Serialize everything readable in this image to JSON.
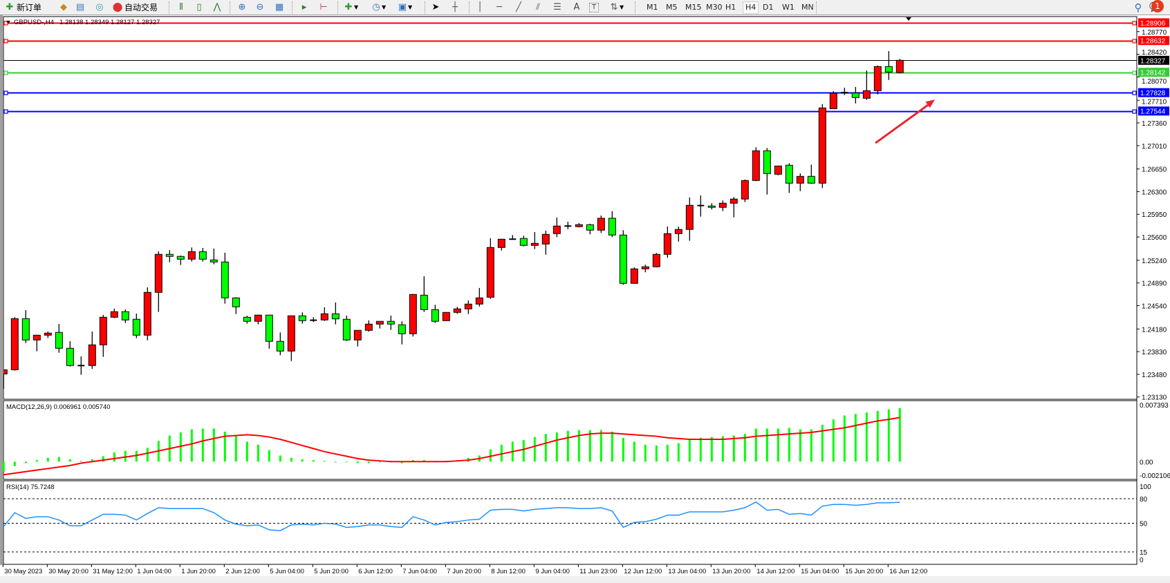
{
  "toolbar": {
    "new_order_label": "新订单",
    "auto_trade_label": "自动交易",
    "tools": [
      "market-watch-icon",
      "data-window-icon",
      "navigator-icon",
      "terminal-icon",
      "bar-chart-icon",
      "candlestick-icon",
      "line-chart-icon",
      "zoom-in-icon",
      "zoom-out-icon",
      "tile-windows-icon",
      "auto-scroll-icon",
      "chart-shift-icon",
      "indicators-icon",
      "periods-icon",
      "templates-icon",
      "cursor-icon",
      "crosshair-icon",
      "vertical-line-icon",
      "horizontal-line-icon",
      "trendline-icon",
      "equidistant-channel-icon",
      "fibonacci-icon",
      "text-icon",
      "text-label-icon",
      "arrows-icon"
    ],
    "text_tool_label": "A",
    "timeframes": [
      "M1",
      "M5",
      "M15",
      "M30",
      "H1",
      "H4",
      "D1",
      "W1",
      "MN"
    ],
    "active_timeframe": "H4",
    "notification_count": "1"
  },
  "chart_header": {
    "symbol": "GBPUSD-,H4",
    "ohlc": "1.28138 1.28349 1.28127 1.28327"
  },
  "colors": {
    "bull": "#ff0000",
    "bear": "#00ff00",
    "macd_hist": "#00ff00",
    "signal": "#ff0000",
    "rsi": "#1e90ff",
    "resistance": "#ff0000",
    "support": "#0000ff",
    "green_level": "#32cd32",
    "arrow": "#e8262b"
  },
  "chart_data": [
    {
      "type": "candlestick",
      "ohlc_order": "open,high,low,close",
      "candles": [
        [
          1.23486,
          1.2355,
          1.23258,
          1.2355
        ],
        [
          1.23551,
          1.24361,
          1.23537,
          1.2434
        ],
        [
          1.2434,
          1.24471,
          1.23963,
          1.2401
        ],
        [
          1.2401,
          1.2409,
          1.23835,
          1.24084
        ],
        [
          1.24084,
          1.24141,
          1.24042,
          1.24116
        ],
        [
          1.24127,
          1.24258,
          1.23814,
          1.23882
        ],
        [
          1.23882,
          1.23992,
          1.236,
          1.23615
        ],
        [
          1.23615,
          1.23757,
          1.23473,
          1.23615
        ],
        [
          1.23615,
          1.24141,
          1.23565,
          1.23935
        ],
        [
          1.23935,
          1.24397,
          1.2375,
          1.24361
        ],
        [
          1.24361,
          1.24493,
          1.24347,
          1.24447
        ],
        [
          1.24447,
          1.24482,
          1.24272,
          1.24319
        ],
        [
          1.2433,
          1.24418,
          1.24038,
          1.24084
        ],
        [
          1.24084,
          1.24823,
          1.24006,
          1.24745
        ],
        [
          1.24745,
          1.25378,
          1.24443,
          1.25332
        ],
        [
          1.25332,
          1.25396,
          1.2521,
          1.253
        ],
        [
          1.253,
          1.25314,
          1.25168,
          1.25257
        ],
        [
          1.25257,
          1.25438,
          1.25221,
          1.25374
        ],
        [
          1.25374,
          1.25431,
          1.25221,
          1.25257
        ],
        [
          1.25246,
          1.2542,
          1.25178,
          1.25214
        ],
        [
          1.25214,
          1.25356,
          1.24571,
          1.2466
        ],
        [
          1.2466,
          1.2467,
          1.24411,
          1.24522
        ],
        [
          1.24361,
          1.24383,
          1.24262,
          1.24298
        ],
        [
          1.24298,
          1.244,
          1.24251,
          1.24394
        ],
        [
          1.24394,
          1.244,
          1.23878,
          1.23989
        ],
        [
          1.23989,
          1.24127,
          1.23775,
          1.23839
        ],
        [
          1.23839,
          1.2439,
          1.23686,
          1.24383
        ],
        [
          1.24383,
          1.24436,
          1.24262,
          1.24308
        ],
        [
          1.24315,
          1.24361,
          1.24287,
          1.24315
        ],
        [
          1.24319,
          1.24514,
          1.24304,
          1.24415
        ],
        [
          1.24415,
          1.24589,
          1.24251,
          1.24336
        ],
        [
          1.2433,
          1.24386,
          1.23995,
          1.2401
        ],
        [
          1.2401,
          1.2416,
          1.2391,
          1.24159
        ],
        [
          1.24159,
          1.24312,
          1.24138,
          1.24255
        ],
        [
          1.24255,
          1.243,
          1.24187,
          1.24298
        ],
        [
          1.24298,
          1.24386,
          1.24166,
          1.24255
        ],
        [
          1.24245,
          1.24298,
          1.23942,
          1.24106
        ],
        [
          1.24106,
          1.2472,
          1.24063,
          1.24713
        ],
        [
          1.24702,
          1.24994,
          1.24443,
          1.24479
        ],
        [
          1.24479,
          1.24554,
          1.24272,
          1.24298
        ],
        [
          1.24308,
          1.2444,
          1.243,
          1.24436
        ],
        [
          1.24436,
          1.24521,
          1.24415,
          1.2449
        ],
        [
          1.2449,
          1.24621,
          1.24411,
          1.24564
        ],
        [
          1.24564,
          1.24813,
          1.24527,
          1.2466
        ],
        [
          1.2467,
          1.2558,
          1.24645,
          1.25438
        ],
        [
          1.25438,
          1.2557,
          1.25391,
          1.25566
        ],
        [
          1.25566,
          1.2563,
          1.2556,
          1.25566
        ],
        [
          1.25577,
          1.25619,
          1.25455,
          1.2547
        ],
        [
          1.2547,
          1.25676,
          1.25413,
          1.25502
        ],
        [
          1.25491,
          1.25698,
          1.25327,
          1.25641
        ],
        [
          1.25652,
          1.259,
          1.25598,
          1.25769
        ],
        [
          1.25769,
          1.25836,
          1.2572,
          1.25769
        ],
        [
          1.25759,
          1.25815,
          1.25748,
          1.2579
        ],
        [
          1.2579,
          1.25804,
          1.25641,
          1.25705
        ],
        [
          1.25705,
          1.25932,
          1.25662,
          1.25889
        ],
        [
          1.25889,
          1.25996,
          1.25598,
          1.2563
        ],
        [
          1.2563,
          1.25704,
          1.24863,
          1.24884
        ],
        [
          1.24884,
          1.2513,
          1.2488,
          1.25108
        ],
        [
          1.25108,
          1.25172,
          1.25055,
          1.2514
        ],
        [
          1.2514,
          1.25353,
          1.2513,
          1.25332
        ],
        [
          1.25332,
          1.25761,
          1.25279,
          1.25652
        ],
        [
          1.25652,
          1.25761,
          1.2553,
          1.25716
        ],
        [
          1.25716,
          1.26209,
          1.25541,
          1.26089
        ],
        [
          1.26085,
          1.26241,
          1.25914,
          1.26085
        ],
        [
          1.26078,
          1.26121,
          1.26025,
          1.26057
        ],
        [
          1.26057,
          1.26163,
          1.26,
          1.26121
        ],
        [
          1.26121,
          1.26217,
          1.25903,
          1.26185
        ],
        [
          1.26185,
          1.26486,
          1.2614,
          1.26472
        ],
        [
          1.26472,
          1.26984,
          1.26462,
          1.26931
        ],
        [
          1.26931,
          1.26973,
          1.26255,
          1.26579
        ],
        [
          1.26568,
          1.267,
          1.26553,
          1.26696
        ],
        [
          1.26707,
          1.26739,
          1.2628,
          1.2643
        ],
        [
          1.2643,
          1.26582,
          1.26308,
          1.26536
        ],
        [
          1.26536,
          1.26718,
          1.2642,
          1.2643
        ],
        [
          1.2643,
          1.27651,
          1.26355,
          1.27592
        ],
        [
          1.2758,
          1.27851,
          1.2758,
          1.27819
        ],
        [
          1.27829,
          1.27904,
          1.2779,
          1.27829
        ],
        [
          1.27822,
          1.27915,
          1.27662,
          1.27752
        ],
        [
          1.27741,
          1.2817,
          1.27715,
          1.27858
        ],
        [
          1.27858,
          1.28248,
          1.27801,
          1.28231
        ],
        [
          1.28231,
          1.28469,
          1.28024,
          1.28146
        ],
        [
          1.28138,
          1.28349,
          1.28127,
          1.28327
        ]
      ],
      "ylim": [
        1.2313,
        1.28906
      ],
      "y_ticks": [
        "1.28770",
        "1.28420",
        "1.28070",
        "1.27710",
        "1.27360",
        "1.27010",
        "1.26650",
        "1.26300",
        "1.25950",
        "1.25600",
        "1.25240",
        "1.24890",
        "1.24540",
        "1.24180",
        "1.23830",
        "1.23480",
        "1.23130"
      ],
      "x_labels": [
        {
          "bar": 0,
          "label": "30 May 2023"
        },
        {
          "bar": 4,
          "label": "30 May 20:00"
        },
        {
          "bar": 8,
          "label": "31 May 12:00"
        },
        {
          "bar": 12,
          "label": "1 Jun 04:00"
        },
        {
          "bar": 16,
          "label": "1 Jun 20:00"
        },
        {
          "bar": 20,
          "label": "2 Jun 12:00"
        },
        {
          "bar": 24,
          "label": "5 Jun 04:00"
        },
        {
          "bar": 28,
          "label": "5 Jun 20:00"
        },
        {
          "bar": 32,
          "label": "6 Jun 12:00"
        },
        {
          "bar": 36,
          "label": "7 Jun 04:00"
        },
        {
          "bar": 40,
          "label": "7 Jun 20:00"
        },
        {
          "bar": 44,
          "label": "8 Jun 12:00"
        },
        {
          "bar": 48,
          "label": "9 Jun 04:00"
        },
        {
          "bar": 52,
          "label": "11 Jun 23:00"
        },
        {
          "bar": 56,
          "label": "12 Jun 12:00"
        },
        {
          "bar": 60,
          "label": "13 Jun 04:00"
        },
        {
          "bar": 64,
          "label": "13 Jun 20:00"
        },
        {
          "bar": 68,
          "label": "14 Jun 12:00"
        },
        {
          "bar": 72,
          "label": "15 Jun 04:00"
        },
        {
          "bar": 76,
          "label": "15 Jun 20:00"
        },
        {
          "bar": 80,
          "label": "16 Jun 12:00"
        }
      ],
      "levels": [
        {
          "price": "1.28906",
          "kind": "resistance"
        },
        {
          "price": "1.28632",
          "kind": "resistance"
        },
        {
          "price": "1.28327",
          "kind": "bid"
        },
        {
          "price": "1.28142",
          "kind": "green_level"
        },
        {
          "price": "1.27828",
          "kind": "support"
        },
        {
          "price": "1.27544",
          "kind": "support"
        }
      ],
      "annotation": {
        "type": "arrow",
        "points_to_price": 1.27828,
        "from_price": 1.2705
      }
    },
    {
      "type": "bar",
      "name_label": "MACD(12,26,9) 0.006961 0.005740",
      "ylim": [
        -0.002106,
        0.007393
      ],
      "y_ticks": [
        "0.007393",
        "0.00",
        "-0.002106"
      ],
      "histogram": [
        -0.0013,
        -0.0006,
        -0.0002,
        0.0002,
        0.0005,
        0.0006,
        0.0003,
        0.0001,
        0.0003,
        0.0007,
        0.0012,
        0.0014,
        0.0014,
        0.0018,
        0.0027,
        0.0034,
        0.0038,
        0.0042,
        0.0043,
        0.0043,
        0.0039,
        0.0034,
        0.0026,
        0.0022,
        0.0015,
        0.0008,
        0.0005,
        0.0003,
        0.0002,
        0.0001,
        0,
        0,
        -0.0002,
        -0.0002,
        -0.0001,
        -0.0001,
        -0.0002,
        0.0002,
        0.0002,
        0,
        0.0001,
        0.0002,
        0.0005,
        0.0008,
        0.0016,
        0.0022,
        0.0026,
        0.0028,
        0.0032,
        0.0036,
        0.0038,
        0.004,
        0.0041,
        0.0041,
        0.0041,
        0.0039,
        0.0031,
        0.0026,
        0.0022,
        0.0021,
        0.0022,
        0.0024,
        0.0028,
        0.0031,
        0.0032,
        0.0033,
        0.0034,
        0.0036,
        0.0043,
        0.0043,
        0.0043,
        0.0044,
        0.0042,
        0.0042,
        0.0048,
        0.0055,
        0.006,
        0.0062,
        0.0064,
        0.0066,
        0.0068,
        0.006961
      ],
      "signal": [
        -0.0017,
        -0.0015,
        -0.0013,
        -0.0011,
        -0.0009,
        -0.0007,
        -0.0005,
        -0.0002,
        0,
        0.0002,
        0.0004,
        0.0006,
        0.0008,
        0.0011,
        0.0014,
        0.0017,
        0.002,
        0.0023,
        0.0027,
        0.003,
        0.0033,
        0.0034,
        0.0035,
        0.0034,
        0.0032,
        0.0029,
        0.0025,
        0.0021,
        0.0017,
        0.0013,
        0.001,
        0.0007,
        0.0004,
        0.0002,
        0.0001,
        0,
        0,
        0,
        0,
        0,
        0,
        0.0001,
        0.0002,
        0.0004,
        0.0007,
        0.001,
        0.0013,
        0.0016,
        0.002,
        0.0024,
        0.0028,
        0.0031,
        0.0034,
        0.0036,
        0.0037,
        0.0037,
        0.0036,
        0.0035,
        0.0034,
        0.0033,
        0.0031,
        0.003,
        0.0029,
        0.0029,
        0.0029,
        0.0029,
        0.003,
        0.0031,
        0.0033,
        0.0034,
        0.0035,
        0.0036,
        0.0037,
        0.0038,
        0.004,
        0.0042,
        0.0044,
        0.0047,
        0.005,
        0.0053,
        0.0055,
        0.00574
      ]
    },
    {
      "type": "line",
      "name_label": "RSI(14) 75.7248",
      "ylim": [
        0,
        100
      ],
      "levels": [
        80,
        50,
        15
      ],
      "y_ticks": [
        "100",
        "80",
        "50",
        "15",
        "0"
      ],
      "values": [
        46,
        63,
        56,
        58,
        58,
        54,
        47,
        47,
        54,
        61,
        61,
        60,
        54,
        62,
        69,
        68,
        68,
        68,
        68,
        63,
        54,
        49,
        47,
        48,
        42,
        41,
        48,
        49,
        48,
        50,
        49,
        45,
        46,
        48,
        48,
        46,
        45,
        58,
        54,
        48,
        51,
        52,
        54,
        55,
        66,
        67,
        67,
        65,
        67,
        68,
        69,
        69,
        68,
        68,
        69,
        65,
        45,
        51,
        52,
        55,
        60,
        60,
        64,
        64,
        64,
        64,
        66,
        69,
        76,
        66,
        67,
        61,
        62,
        60,
        71,
        73,
        73,
        72,
        73,
        75,
        75,
        75.7248
      ]
    }
  ]
}
